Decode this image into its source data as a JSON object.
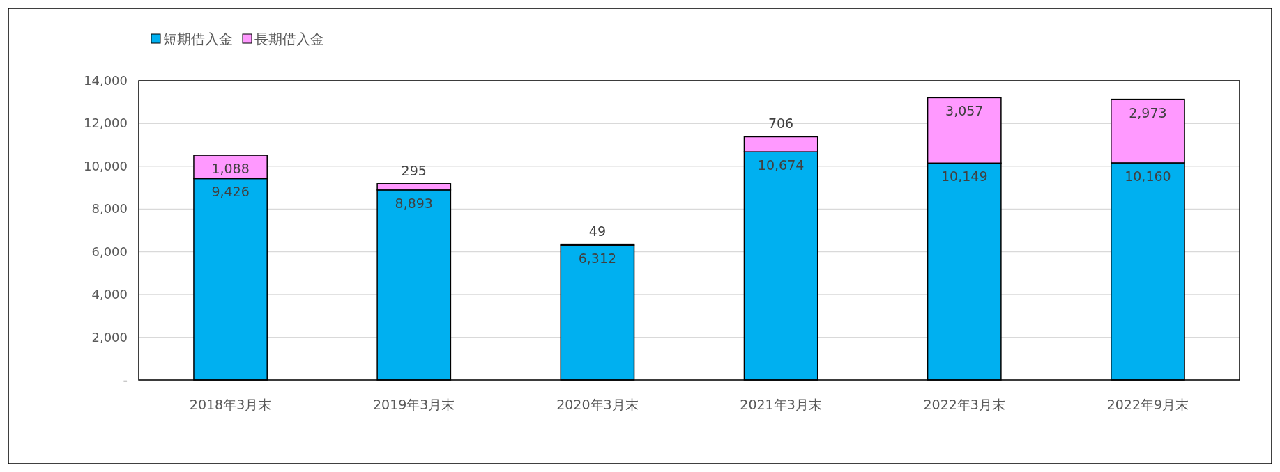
{
  "chart_data": {
    "type": "bar",
    "stacked": true,
    "categories": [
      "2018年3月末",
      "2019年3月末",
      "2020年3月末",
      "2021年3月末",
      "2022年3月末",
      "2022年9月末"
    ],
    "series": [
      {
        "name": "短期借入金",
        "color": "#00b0f0",
        "values": [
          9426,
          8893,
          6312,
          10674,
          10149,
          10160
        ],
        "value_labels": [
          "9,426",
          "8,893",
          "6,312",
          "10,674",
          "10,149",
          "10,160"
        ]
      },
      {
        "name": "長期借入金",
        "color": "#ff99ff",
        "values": [
          1088,
          295,
          49,
          706,
          3057,
          2973
        ],
        "value_labels": [
          "1,088",
          "295",
          "49",
          "706",
          "3,057",
          "2,973"
        ]
      }
    ],
    "ylim": [
      0,
      14000
    ],
    "yticks": [
      {
        "value": 0,
        "label": "-"
      },
      {
        "value": 2000,
        "label": "2,000"
      },
      {
        "value": 4000,
        "label": "4,000"
      },
      {
        "value": 6000,
        "label": "6,000"
      },
      {
        "value": 8000,
        "label": "8,000"
      },
      {
        "value": 10000,
        "label": "10,000"
      },
      {
        "value": 12000,
        "label": "12,000"
      },
      {
        "value": 14000,
        "label": "14,000"
      }
    ],
    "grid": "y",
    "legend": "top left"
  }
}
